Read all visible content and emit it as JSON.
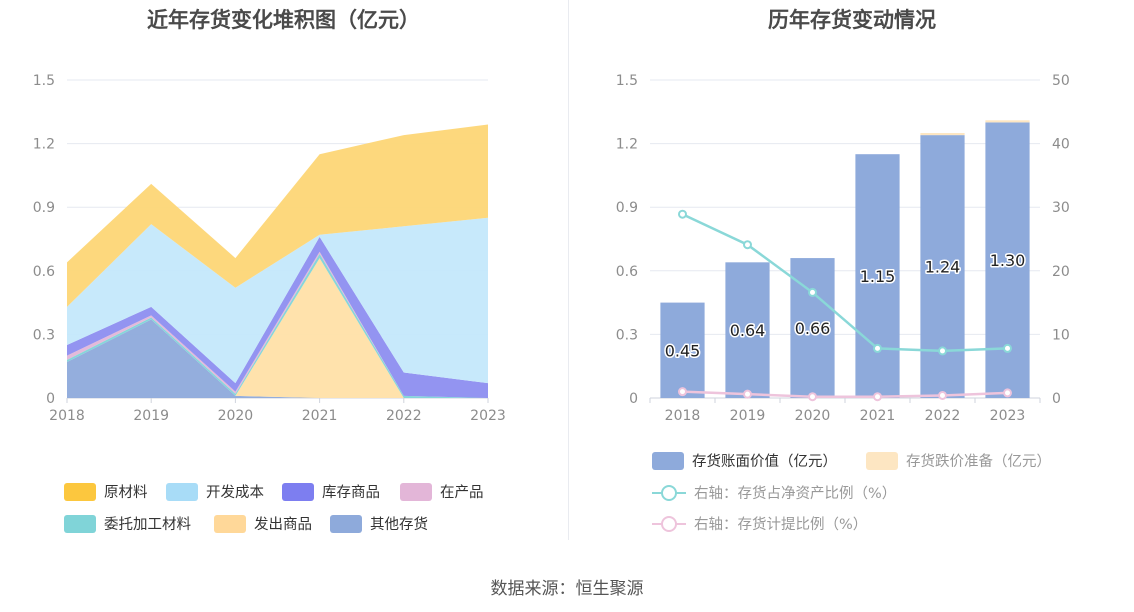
{
  "source": "数据来源：恒生聚源",
  "chart_data": [
    {
      "type": "area",
      "stacked": true,
      "title": "近年存货变化堆积图（亿元）",
      "x": [
        "2018",
        "2019",
        "2020",
        "2021",
        "2022",
        "2023"
      ],
      "ylim": [
        0,
        1.5
      ],
      "yticks": [
        "0",
        "0.3",
        "0.6",
        "0.9",
        "1.2",
        "1.5"
      ],
      "grid": true,
      "legend_position": "bottom",
      "series": [
        {
          "name": "其他存货",
          "color": "#8eaadb",
          "values": [
            0.17,
            0.37,
            0.01,
            0.0,
            0.0,
            0.0
          ]
        },
        {
          "name": "发出商品",
          "color": "#ffe0a8",
          "values": [
            0.0,
            0.0,
            0.0,
            0.66,
            0.0,
            0.0
          ]
        },
        {
          "name": "委托加工材料",
          "color": "#80d4d8",
          "values": [
            0.01,
            0.01,
            0.01,
            0.02,
            0.01,
            0.0
          ]
        },
        {
          "name": "在产品",
          "color": "#e3b6d8",
          "values": [
            0.02,
            0.01,
            0.01,
            0.01,
            0.0,
            0.0
          ]
        },
        {
          "name": "库存商品",
          "color": "#8d8ef0",
          "values": [
            0.05,
            0.04,
            0.04,
            0.07,
            0.11,
            0.07
          ]
        },
        {
          "name": "开发成本",
          "color": "#c4e8fb",
          "values": [
            0.18,
            0.39,
            0.45,
            0.01,
            0.69,
            0.78
          ]
        },
        {
          "name": "原材料",
          "color": "#fdd676",
          "values": [
            0.21,
            0.19,
            0.14,
            0.38,
            0.43,
            0.44
          ]
        }
      ],
      "legend": [
        {
          "name": "原材料",
          "color": "#fcc73e"
        },
        {
          "name": "开发成本",
          "color": "#a8dcf7"
        },
        {
          "name": "库存商品",
          "color": "#7d7ef0"
        },
        {
          "name": "在产品",
          "color": "#e3b6d8"
        },
        {
          "name": "委托加工材料",
          "color": "#80d4d8"
        },
        {
          "name": "发出商品",
          "color": "#ffd899"
        },
        {
          "name": "其他存货",
          "color": "#8eaadb"
        }
      ]
    },
    {
      "type": "bar",
      "title": "历年存货变动情况",
      "categories": [
        "2018",
        "2019",
        "2020",
        "2021",
        "2022",
        "2023"
      ],
      "ylim": [
        0,
        1.5
      ],
      "yticks": [
        "0",
        "0.3",
        "0.6",
        "0.9",
        "1.2",
        "1.5"
      ],
      "y2lim": [
        0,
        50
      ],
      "y2ticks": [
        "0",
        "10",
        "20",
        "30",
        "40",
        "50"
      ],
      "grid": true,
      "legend_position": "bottom",
      "series": [
        {
          "name": "存货账面价值（亿元）",
          "type": "bar",
          "color": "#8eaadb",
          "values": [
            0.45,
            0.64,
            0.66,
            1.15,
            1.24,
            1.3
          ],
          "labels": [
            "0.45",
            "0.64",
            "0.66",
            "1.15",
            "1.24",
            "1.30"
          ]
        },
        {
          "name": "存货跌价准备（亿元）",
          "type": "bar",
          "stack": true,
          "color": "#fde6c2",
          "values": [
            0.0,
            0.0,
            0.0,
            0.0,
            0.01,
            0.01
          ]
        },
        {
          "name": "右轴：存货占净资产比例（%）",
          "type": "line",
          "axis": "right",
          "color": "#8ad8d8",
          "values": [
            28.9,
            24.1,
            16.6,
            7.8,
            7.4,
            7.8
          ]
        },
        {
          "name": "右轴：存货计提比例（%）",
          "type": "line",
          "axis": "right",
          "color": "#eec4dc",
          "values": [
            1.0,
            0.6,
            0.2,
            0.2,
            0.4,
            0.8
          ]
        }
      ]
    }
  ]
}
